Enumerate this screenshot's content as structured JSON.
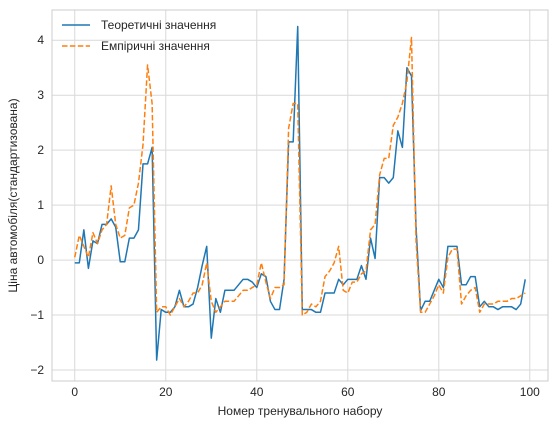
{
  "chart_data": {
    "type": "line",
    "title": "",
    "xlabel": "Номер тренувального набору",
    "ylabel": "Ціна автомобіля(стандартизована)",
    "xlim": [
      -5,
      104
    ],
    "ylim": [
      -2.2,
      4.55
    ],
    "xticks": [
      0,
      20,
      40,
      60,
      80,
      100
    ],
    "yticks": [
      -2,
      -1,
      0,
      1,
      2,
      3,
      4
    ],
    "grid": true,
    "legend_position": "top-left",
    "series": [
      {
        "name": "Теоретичні значення",
        "color": "#1f77b4",
        "style": "solid",
        "x": [
          0,
          1,
          2,
          3,
          4,
          5,
          6,
          7,
          8,
          9,
          10,
          11,
          12,
          13,
          14,
          15,
          16,
          17,
          18,
          19,
          20,
          21,
          22,
          23,
          24,
          25,
          26,
          27,
          28,
          29,
          30,
          31,
          32,
          33,
          34,
          35,
          36,
          37,
          38,
          39,
          40,
          41,
          42,
          43,
          44,
          45,
          46,
          47,
          48,
          49,
          50,
          51,
          52,
          53,
          54,
          55,
          56,
          57,
          58,
          59,
          60,
          61,
          62,
          63,
          64,
          65,
          66,
          67,
          68,
          69,
          70,
          71,
          72,
          73,
          74,
          75,
          76,
          77,
          78,
          79,
          80,
          81,
          82,
          83,
          84,
          85,
          86,
          87,
          88,
          89,
          90,
          91,
          92,
          93,
          94,
          95,
          96,
          97,
          98,
          99
        ],
        "values": [
          -0.05,
          -0.05,
          0.55,
          -0.15,
          0.35,
          0.3,
          0.65,
          0.65,
          0.75,
          0.6,
          -0.03,
          -0.03,
          0.4,
          0.4,
          0.55,
          1.75,
          1.75,
          2.05,
          -1.82,
          -0.9,
          -0.95,
          -0.95,
          -0.85,
          -0.55,
          -0.85,
          -0.85,
          -0.8,
          -0.5,
          -0.1,
          0.25,
          -1.42,
          -0.7,
          -0.95,
          -0.55,
          -0.55,
          -0.55,
          -0.45,
          -0.35,
          -0.35,
          -0.4,
          -0.5,
          -0.25,
          -0.3,
          -0.75,
          -0.9,
          -0.9,
          -0.35,
          2.15,
          2.15,
          4.25,
          -0.9,
          -0.9,
          -0.9,
          -0.95,
          -0.95,
          -0.6,
          -0.6,
          -0.6,
          -0.35,
          -0.45,
          -0.35,
          -0.35,
          -0.35,
          -0.1,
          -0.35,
          0.4,
          0.03,
          1.5,
          1.5,
          1.4,
          1.5,
          2.35,
          2.05,
          3.5,
          3.35,
          0.6,
          -0.92,
          -0.75,
          -0.75,
          -0.55,
          -0.35,
          -0.5,
          0.25,
          0.25,
          0.25,
          -0.45,
          -0.45,
          -0.3,
          -0.3,
          -0.85,
          -0.75,
          -0.85,
          -0.85,
          -0.9,
          -0.85,
          -0.85,
          -0.85,
          -0.9,
          -0.8,
          -0.35
        ]
      },
      {
        "name": "Емпіричні значення",
        "color": "#ff7f0e",
        "style": "dashed",
        "x": [
          0,
          1,
          2,
          3,
          4,
          5,
          6,
          7,
          8,
          9,
          10,
          11,
          12,
          13,
          14,
          15,
          16,
          17,
          18,
          19,
          20,
          21,
          22,
          23,
          24,
          25,
          26,
          27,
          28,
          29,
          30,
          31,
          32,
          33,
          34,
          35,
          36,
          37,
          38,
          39,
          40,
          41,
          42,
          43,
          44,
          45,
          46,
          47,
          48,
          49,
          50,
          51,
          52,
          53,
          54,
          55,
          56,
          57,
          58,
          59,
          60,
          61,
          62,
          63,
          64,
          65,
          66,
          67,
          68,
          69,
          70,
          71,
          72,
          73,
          74,
          75,
          76,
          77,
          78,
          79,
          80,
          81,
          82,
          83,
          84,
          85,
          86,
          87,
          88,
          89,
          90,
          91,
          92,
          93,
          94,
          95,
          96,
          97,
          98,
          99
        ],
        "values": [
          0.05,
          0.45,
          0.25,
          0.05,
          0.5,
          0.3,
          0.55,
          0.65,
          1.35,
          0.65,
          0.4,
          0.45,
          0.95,
          1.0,
          1.4,
          2.1,
          3.55,
          2.85,
          -0.95,
          -0.85,
          -0.85,
          -1.0,
          -0.85,
          -0.7,
          -0.85,
          -0.75,
          -0.6,
          -0.6,
          -0.45,
          -0.05,
          -0.75,
          -0.95,
          -0.85,
          -0.75,
          -0.75,
          -0.75,
          -0.65,
          -0.55,
          -0.55,
          -0.5,
          -0.45,
          -0.05,
          -0.4,
          -0.7,
          -0.5,
          -0.5,
          -0.45,
          2.4,
          2.85,
          2.85,
          -1.0,
          -0.95,
          -0.8,
          -0.85,
          -0.75,
          -0.3,
          -0.2,
          -0.05,
          0.25,
          -0.55,
          -0.6,
          -0.4,
          -0.4,
          -0.25,
          -0.2,
          0.55,
          0.65,
          1.55,
          1.85,
          1.85,
          2.45,
          2.6,
          2.85,
          3.25,
          4.05,
          0.35,
          -0.95,
          -0.95,
          -0.8,
          -0.65,
          -0.45,
          -0.6,
          0.05,
          0.2,
          0.2,
          -0.8,
          -0.65,
          -0.55,
          -0.5,
          -0.95,
          -0.8,
          -0.8,
          -0.8,
          -0.75,
          -0.75,
          -0.75,
          -0.7,
          -0.7,
          -0.65,
          -0.6
        ]
      }
    ]
  }
}
